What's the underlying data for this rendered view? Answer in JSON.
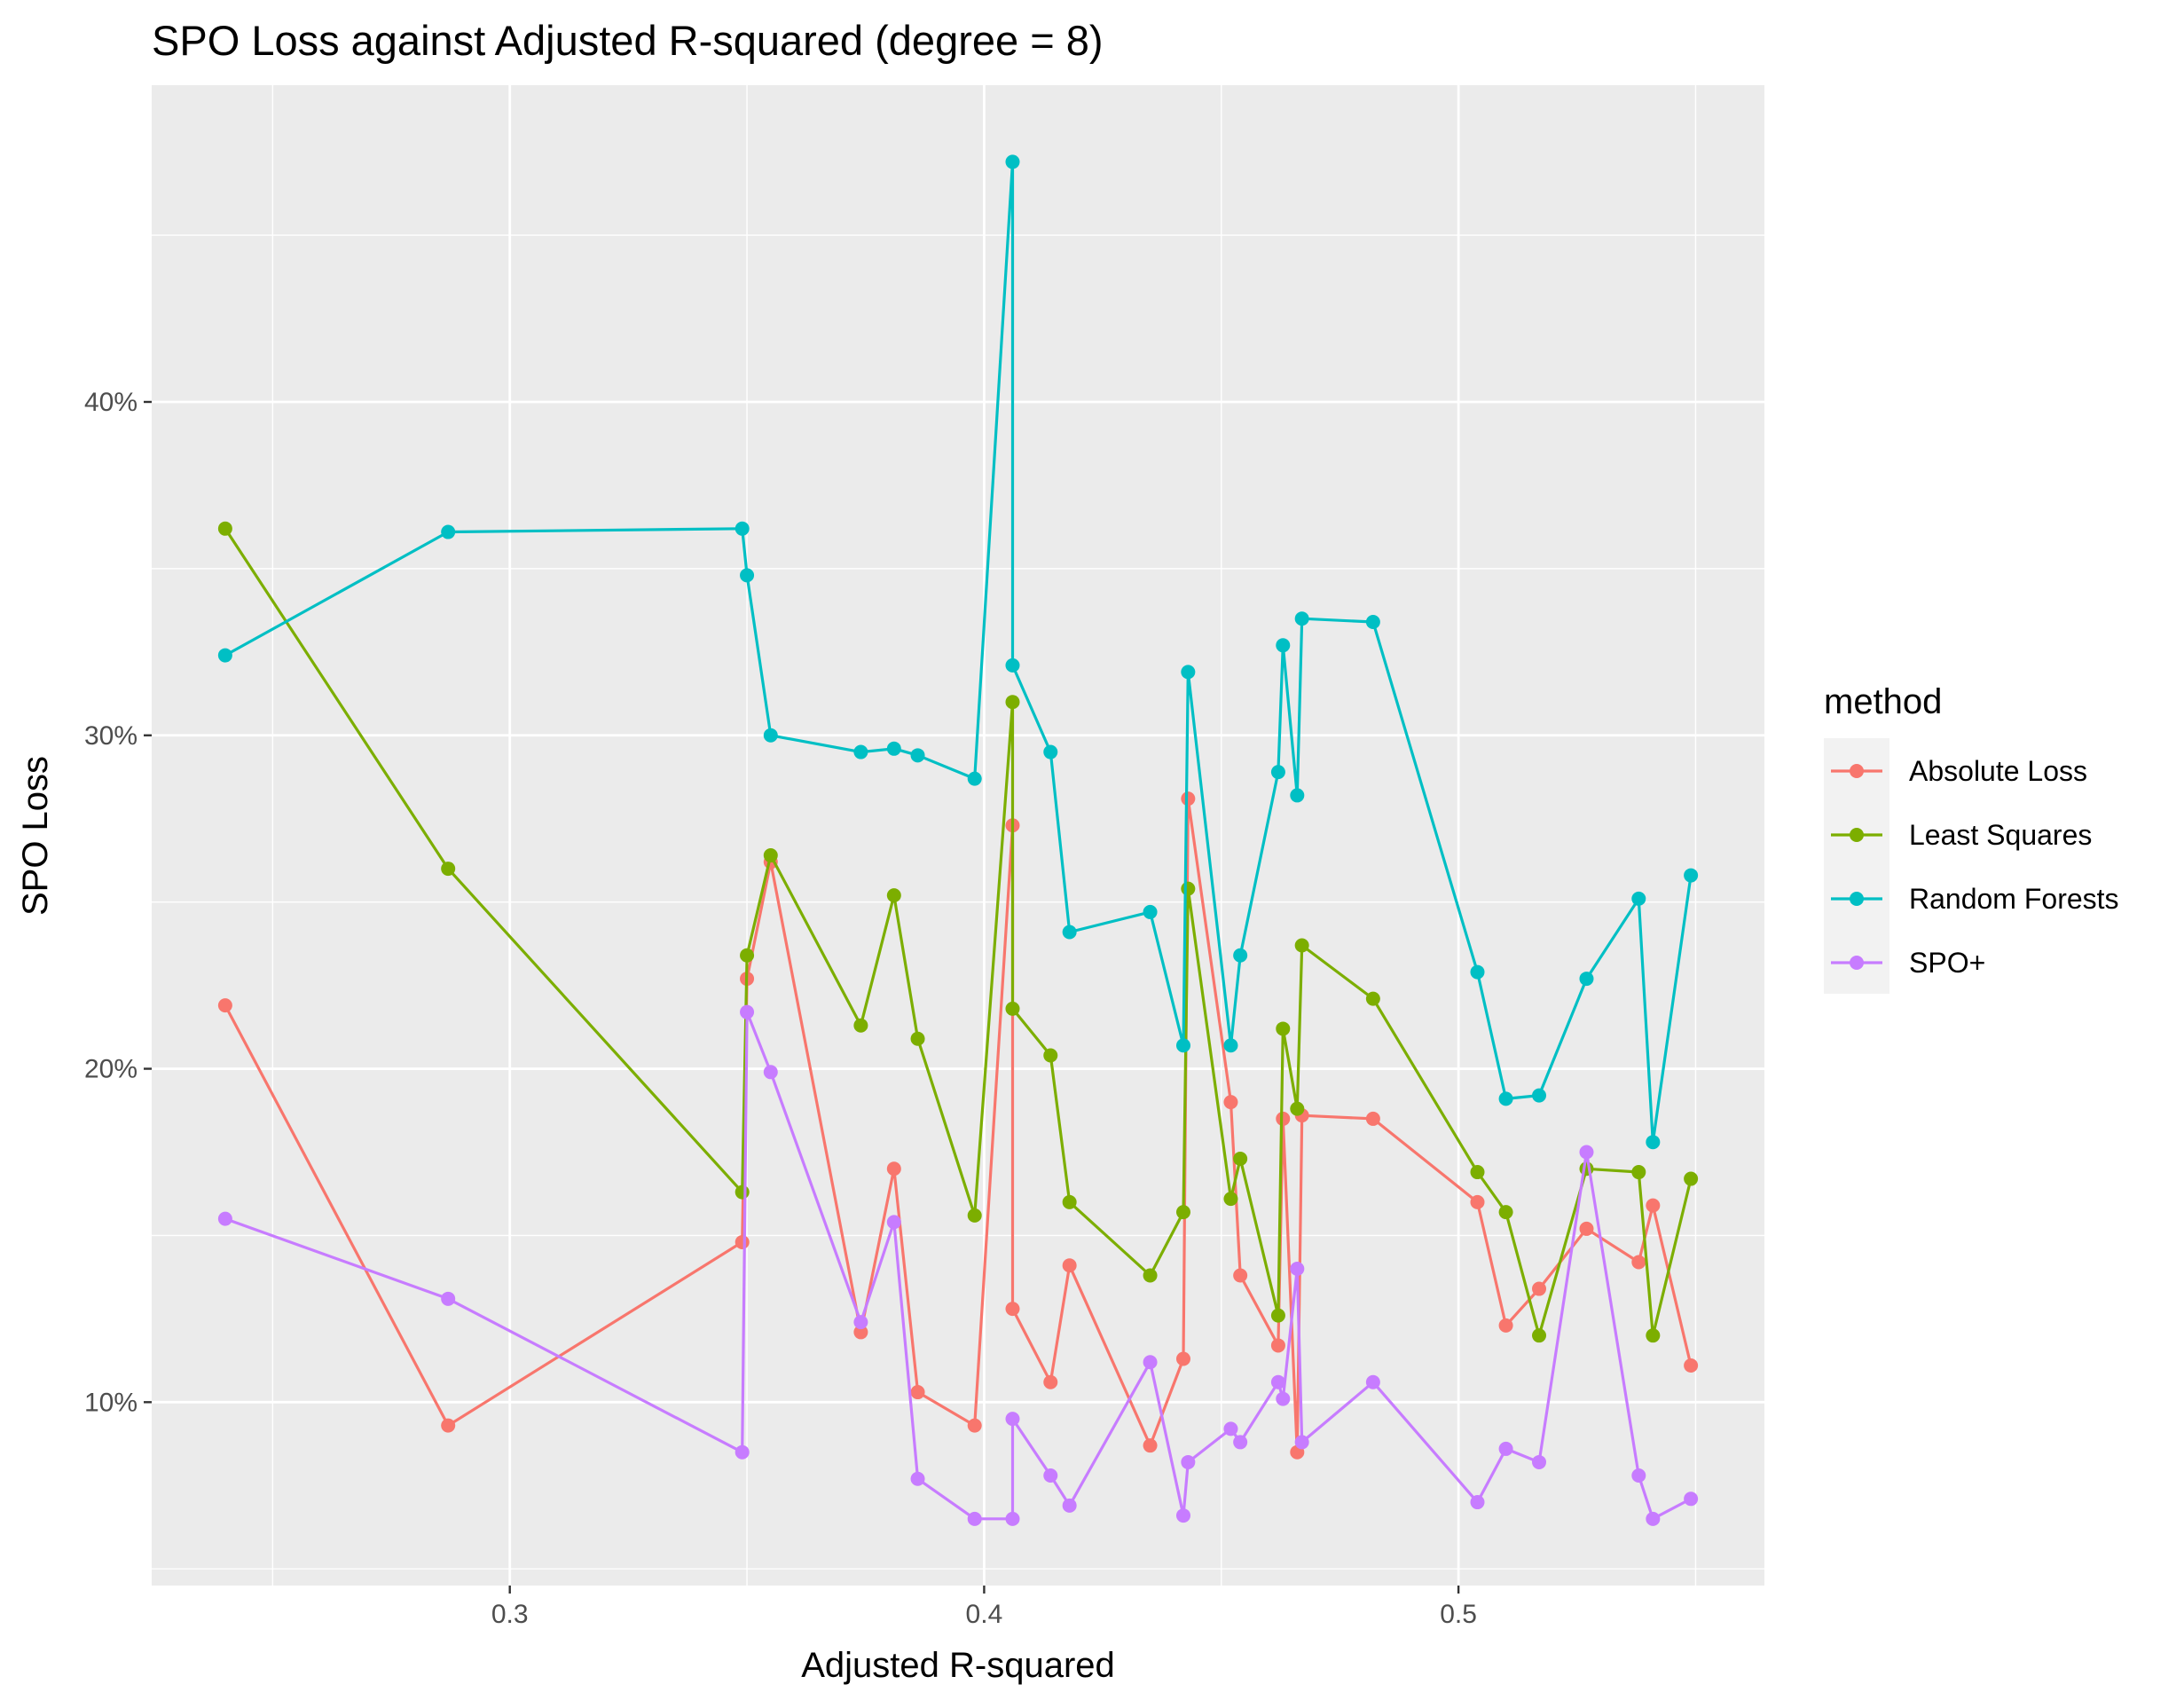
{
  "chart_data": {
    "type": "line",
    "title": "SPO Loss against Adjusted R-squared (degree = 8)",
    "xlabel": "Adjusted R-squared",
    "ylabel": "SPO Loss",
    "xlim": [
      0.2245,
      0.5645
    ],
    "ylim": [
      0.045,
      0.495
    ],
    "x_ticks": [
      0.3,
      0.4,
      0.5
    ],
    "x_tick_labels": [
      "0.3",
      "0.4",
      "0.5"
    ],
    "y_ticks": [
      0.1,
      0.2,
      0.3,
      0.4
    ],
    "y_tick_labels": [
      "10%",
      "20%",
      "30%",
      "40%"
    ],
    "grid": true,
    "legend_title": "method",
    "legend_position": "right",
    "x": [
      0.24,
      0.287,
      0.349,
      0.35,
      0.355,
      0.374,
      0.381,
      0.386,
      0.398,
      0.406,
      0.406,
      0.414,
      0.418,
      0.435,
      0.442,
      0.443,
      0.452,
      0.454,
      0.462,
      0.463,
      0.466,
      0.467,
      0.482,
      0.504,
      0.51,
      0.517,
      0.527,
      0.538,
      0.541,
      0.549
    ],
    "series": [
      {
        "name": "Absolute Loss",
        "color": "#F8766D",
        "values": [
          0.219,
          0.093,
          0.148,
          0.227,
          0.262,
          0.121,
          0.17,
          0.103,
          0.093,
          0.273,
          0.128,
          0.106,
          0.141,
          0.087,
          0.113,
          0.281,
          0.19,
          0.138,
          0.117,
          0.185,
          0.085,
          0.186,
          0.185,
          0.16,
          0.123,
          0.134,
          0.152,
          0.142,
          0.159,
          0.111
        ]
      },
      {
        "name": "Least Squares",
        "color": "#7CAE00",
        "values": [
          0.362,
          0.26,
          0.163,
          0.234,
          0.264,
          0.213,
          0.252,
          0.209,
          0.156,
          0.31,
          0.218,
          0.204,
          0.16,
          0.138,
          0.157,
          0.254,
          0.161,
          0.173,
          0.126,
          0.212,
          0.188,
          0.237,
          0.221,
          0.169,
          0.157,
          0.12,
          0.17,
          0.169,
          0.12,
          0.167
        ]
      },
      {
        "name": "Random Forests",
        "color": "#00BFC4",
        "values": [
          0.324,
          0.361,
          0.362,
          0.348,
          0.3,
          0.295,
          0.296,
          0.294,
          0.287,
          0.472,
          0.321,
          0.295,
          0.241,
          0.247,
          0.207,
          0.319,
          0.207,
          0.234,
          0.289,
          0.327,
          0.282,
          0.335,
          0.334,
          0.229,
          0.191,
          0.192,
          0.227,
          0.251,
          0.178,
          0.258
        ]
      },
      {
        "name": "SPO+",
        "color": "#C77CFF",
        "values": [
          0.155,
          0.131,
          0.085,
          0.217,
          0.199,
          0.124,
          0.154,
          0.077,
          0.065,
          0.065,
          0.095,
          0.078,
          0.069,
          0.112,
          0.066,
          0.082,
          0.092,
          0.088,
          0.106,
          0.101,
          0.14,
          0.088,
          0.106,
          0.07,
          0.086,
          0.082,
          0.175,
          0.078,
          0.065,
          0.071
        ]
      }
    ]
  }
}
